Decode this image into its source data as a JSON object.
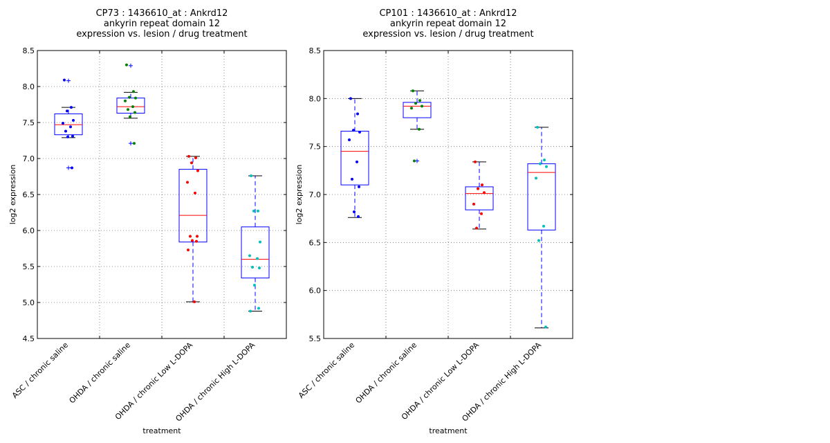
{
  "chart_data": [
    {
      "type": "box",
      "title_lines": [
        "CP73 : 1436610_at : Ankrd12",
        "ankyrin repeat domain 12",
        "expression vs. lesion / drug treatment"
      ],
      "xlabel": "treatment",
      "ylabel": "log2 expression",
      "ylim": [
        4.5,
        8.5
      ],
      "yticks": [
        "4.5",
        "5.0",
        "5.5",
        "6.0",
        "6.5",
        "7.0",
        "7.5",
        "8.0",
        "8.5"
      ],
      "grid": true,
      "categories": [
        "ASC / chronic saline",
        "OHDA / chronic saline",
        "OHDA / chronic Low L-DOPA",
        "OHDA / chronic High L-DOPA"
      ],
      "colors": [
        "#0000ff",
        "#008000",
        "#ff0000",
        "#00bfbf"
      ],
      "boxes": [
        {
          "q1": 7.33,
          "median": 7.47,
          "q3": 7.62,
          "whisker_low": 7.29,
          "whisker_high": 7.71,
          "outliers": [
            8.08,
            6.87
          ]
        },
        {
          "q1": 7.63,
          "median": 7.72,
          "q3": 7.84,
          "whisker_low": 7.56,
          "whisker_high": 7.92,
          "outliers": [
            8.29,
            7.21
          ]
        },
        {
          "q1": 5.84,
          "median": 6.21,
          "q3": 6.85,
          "whisker_low": 5.01,
          "whisker_high": 7.03,
          "outliers": []
        },
        {
          "q1": 5.34,
          "median": 5.6,
          "q3": 6.05,
          "whisker_low": 4.88,
          "whisker_high": 6.76,
          "outliers": []
        }
      ],
      "points": [
        [
          8.09,
          7.71,
          7.66,
          7.53,
          7.49,
          7.44,
          7.38,
          7.31,
          7.3,
          6.87
        ],
        [
          8.3,
          7.93,
          7.85,
          7.84,
          7.8,
          7.72,
          7.68,
          7.64,
          7.58,
          7.21
        ],
        [
          7.03,
          7.01,
          6.94,
          6.83,
          6.67,
          6.52,
          5.92,
          5.92,
          5.86,
          5.85,
          5.73,
          5.01
        ],
        [
          6.76,
          6.27,
          6.27,
          5.84,
          5.65,
          5.61,
          5.49,
          5.48,
          5.24,
          4.92,
          4.88
        ]
      ]
    },
    {
      "type": "box",
      "title_lines": [
        "CP101 : 1436610_at : Ankrd12",
        "ankyrin repeat domain 12",
        "expression vs. lesion / drug treatment"
      ],
      "xlabel": "treatment",
      "ylabel": "log2 expression",
      "ylim": [
        5.5,
        8.5
      ],
      "yticks": [
        "5.5",
        "6.0",
        "6.5",
        "7.0",
        "7.5",
        "8.0",
        "8.5"
      ],
      "grid": true,
      "categories": [
        "ASC / chronic saline",
        "OHDA / chronic saline",
        "OHDA / chronic Low L-DOPA",
        "OHDA / chronic High L-DOPA"
      ],
      "colors": [
        "#0000ff",
        "#008000",
        "#ff0000",
        "#00bfbf"
      ],
      "boxes": [
        {
          "q1": 7.1,
          "median": 7.45,
          "q3": 7.66,
          "whisker_low": 6.76,
          "whisker_high": 8.0,
          "outliers": []
        },
        {
          "q1": 7.8,
          "median": 7.92,
          "q3": 7.96,
          "whisker_low": 7.68,
          "whisker_high": 8.08,
          "outliers": [
            7.35
          ]
        },
        {
          "q1": 6.84,
          "median": 7.01,
          "q3": 7.08,
          "whisker_low": 6.64,
          "whisker_high": 7.34,
          "outliers": []
        },
        {
          "q1": 6.63,
          "median": 7.23,
          "q3": 7.32,
          "whisker_low": 5.61,
          "whisker_high": 7.7,
          "outliers": []
        }
      ],
      "points": [
        [
          8.0,
          7.84,
          7.67,
          7.65,
          7.57,
          7.34,
          7.16,
          7.08,
          6.82,
          6.77
        ],
        [
          8.08,
          7.98,
          7.95,
          7.92,
          7.9,
          7.68,
          7.35
        ],
        [
          7.34,
          7.1,
          7.06,
          7.02,
          6.9,
          6.8,
          6.65
        ],
        [
          7.7,
          7.36,
          7.32,
          7.29,
          7.17,
          6.67,
          6.52,
          5.62
        ]
      ]
    }
  ]
}
